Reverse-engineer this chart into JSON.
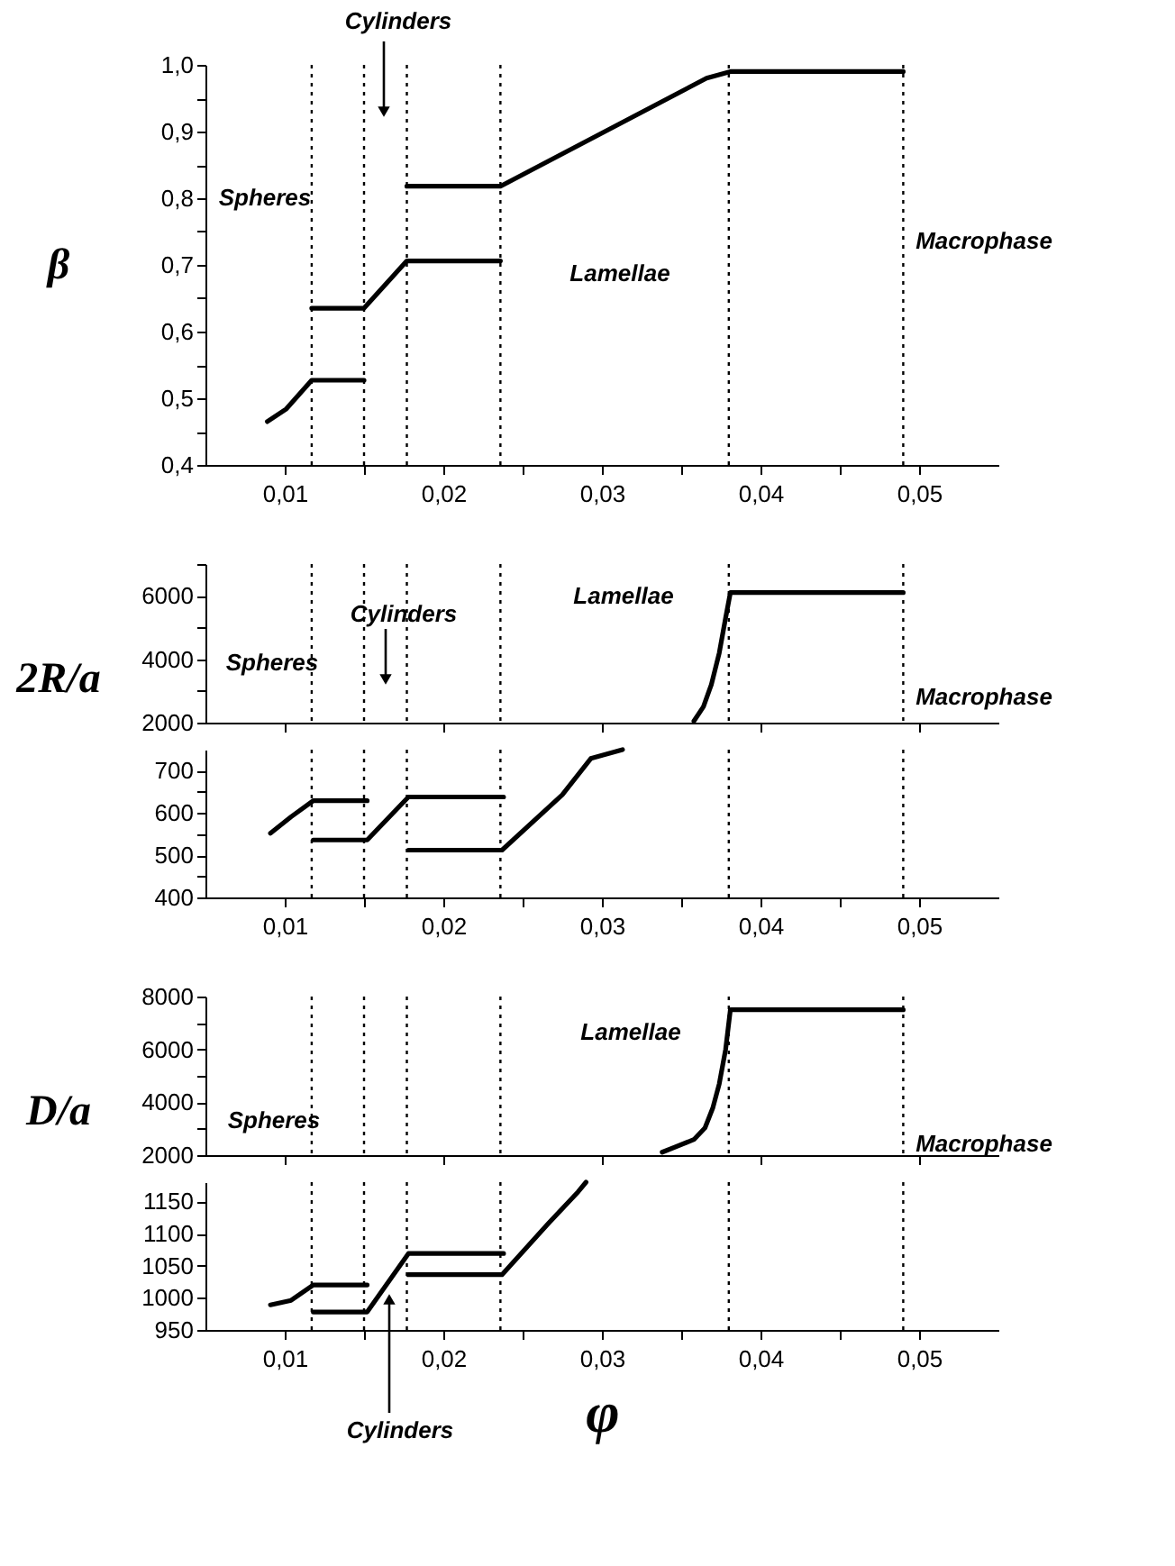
{
  "chart_data": [
    {
      "type": "line",
      "ylabel": "β",
      "xlim": [
        0.005,
        0.055
      ],
      "xticks": [
        {
          "value": 0.01,
          "label": "0,01"
        },
        {
          "value": 0.015,
          "label": null
        },
        {
          "value": 0.02,
          "label": "0,02"
        },
        {
          "value": 0.025,
          "label": null
        },
        {
          "value": 0.03,
          "label": "0,03"
        },
        {
          "value": 0.035,
          "label": null
        },
        {
          "value": 0.04,
          "label": "0,04"
        },
        {
          "value": 0.045,
          "label": null
        },
        {
          "value": 0.05,
          "label": "0,05"
        }
      ],
      "ylim": [
        0.4,
        1.0
      ],
      "yticks": [
        {
          "value": 0.4,
          "label": "0,4"
        },
        {
          "value": 0.45,
          "label": null
        },
        {
          "value": 0.5,
          "label": "0,5"
        },
        {
          "value": 0.55,
          "label": null
        },
        {
          "value": 0.6,
          "label": "0,6"
        },
        {
          "value": 0.65,
          "label": null
        },
        {
          "value": 0.7,
          "label": "0,7"
        },
        {
          "value": 0.75,
          "label": null
        },
        {
          "value": 0.8,
          "label": "0,8"
        },
        {
          "value": 0.85,
          "label": null
        },
        {
          "value": 0.9,
          "label": "0,9"
        },
        {
          "value": 0.95,
          "label": null
        },
        {
          "value": 1.0,
          "label": "1,0"
        }
      ],
      "series": [
        {
          "color": "#000000",
          "x": [
            0.0089,
            0.0101,
            0.0117,
            0.015
          ],
          "values": [
            0.465,
            0.484,
            0.527,
            0.527
          ]
        },
        {
          "color": "#000000",
          "x": [
            0.0117,
            0.015,
            0.0177,
            0.0236
          ],
          "values": [
            0.635,
            0.635,
            0.706,
            0.706
          ]
        },
        {
          "color": "#000000",
          "x": [
            0.0177,
            0.0236,
            0.0366,
            0.0381,
            0.049
          ],
          "values": [
            0.818,
            0.818,
            0.98,
            0.99,
            0.99
          ]
        }
      ],
      "ref_lines": [
        {
          "axis": "x",
          "value": 0.0117,
          "color": "#000000",
          "line_style": "dotted"
        },
        {
          "axis": "x",
          "value": 0.015,
          "color": "#000000",
          "line_style": "dotted"
        },
        {
          "axis": "x",
          "value": 0.0177,
          "color": "#000000",
          "line_style": "dotted"
        },
        {
          "axis": "x",
          "value": 0.0236,
          "color": "#000000",
          "line_style": "dotted"
        },
        {
          "axis": "x",
          "value": 0.038,
          "color": "#000000",
          "line_style": "dotted"
        },
        {
          "axis": "x",
          "value": 0.049,
          "color": "#000000",
          "line_style": "dotted"
        }
      ],
      "annotations": [
        "Cylinders",
        "Spheres",
        "Lamellae",
        "Macrophase"
      ]
    },
    {
      "type": "line",
      "ylabel": "2R/a",
      "tick_labels": "y",
      "xlim": [
        0.005,
        0.055
      ],
      "xticks": [
        0.01,
        0.02,
        0.03,
        0.04,
        0.05
      ],
      "ylim": [
        2000,
        7000
      ],
      "yticks": [
        2000,
        {
          "value": 3000,
          "label": null
        },
        4000,
        {
          "value": 5000,
          "label": null
        },
        6000,
        {
          "value": 7000,
          "label": null
        }
      ],
      "series": [
        {
          "color": "#000000",
          "x": [
            0.0358,
            0.0364,
            0.0369,
            0.0374,
            0.0378,
            0.0381,
            0.049
          ],
          "values": [
            2050,
            2500,
            3200,
            4200,
            5300,
            6100,
            6100
          ]
        }
      ],
      "ref_lines": [
        {
          "axis": "x",
          "value": 0.0117,
          "color": "#000000",
          "line_style": "dotted"
        },
        {
          "axis": "x",
          "value": 0.015,
          "color": "#000000",
          "line_style": "dotted"
        },
        {
          "axis": "x",
          "value": 0.0177,
          "color": "#000000",
          "line_style": "dotted"
        },
        {
          "axis": "x",
          "value": 0.0236,
          "color": "#000000",
          "line_style": "dotted"
        },
        {
          "axis": "x",
          "value": 0.038,
          "color": "#000000",
          "line_style": "dotted"
        },
        {
          "axis": "x",
          "value": 0.049,
          "color": "#000000",
          "line_style": "dotted"
        }
      ],
      "annotations": [
        "Cylinders",
        "Spheres",
        "Lamellae",
        "Macrophase"
      ]
    },
    {
      "type": "line",
      "xlim": [
        0.005,
        0.055
      ],
      "xticks": [
        {
          "value": 0.01,
          "label": "0,01"
        },
        {
          "value": 0.015,
          "label": null
        },
        {
          "value": 0.02,
          "label": "0,02"
        },
        {
          "value": 0.025,
          "label": null
        },
        {
          "value": 0.03,
          "label": "0,03"
        },
        {
          "value": 0.035,
          "label": null
        },
        {
          "value": 0.04,
          "label": "0,04"
        },
        {
          "value": 0.045,
          "label": null
        },
        {
          "value": 0.05,
          "label": "0,05"
        }
      ],
      "ylim": [
        400,
        750
      ],
      "yticks": [
        400,
        {
          "value": 450,
          "label": null
        },
        500,
        {
          "value": 550,
          "label": null
        },
        600,
        {
          "value": 650,
          "label": null
        },
        700
      ],
      "series": [
        {
          "color": "#000000",
          "x": [
            0.0091,
            0.0104,
            0.0118,
            0.0152
          ],
          "values": [
            552,
            591,
            629,
            629
          ]
        },
        {
          "color": "#000000",
          "x": [
            0.0118,
            0.0152,
            0.0178,
            0.0238
          ],
          "values": [
            536,
            536,
            638,
            638
          ]
        },
        {
          "color": "#000000",
          "x": [
            0.0178,
            0.0237,
            0.0275,
            0.0293,
            0.0313
          ],
          "values": [
            512,
            512,
            643,
            729,
            750
          ]
        }
      ],
      "ref_lines": [
        {
          "axis": "x",
          "value": 0.0117,
          "color": "#000000",
          "line_style": "dotted"
        },
        {
          "axis": "x",
          "value": 0.015,
          "color": "#000000",
          "line_style": "dotted"
        },
        {
          "axis": "x",
          "value": 0.0177,
          "color": "#000000",
          "line_style": "dotted"
        },
        {
          "axis": "x",
          "value": 0.0236,
          "color": "#000000",
          "line_style": "dotted"
        },
        {
          "axis": "x",
          "value": 0.038,
          "color": "#000000",
          "line_style": "dotted"
        },
        {
          "axis": "x",
          "value": 0.049,
          "color": "#000000",
          "line_style": "dotted"
        }
      ]
    },
    {
      "type": "line",
      "ylabel": "D/a",
      "tick_labels": "y",
      "xlim": [
        0.005,
        0.055
      ],
      "xticks": [
        0.01,
        0.02,
        0.03,
        0.04,
        0.05
      ],
      "ylim": [
        2000,
        8000
      ],
      "yticks": [
        2000,
        {
          "value": 3000,
          "label": null
        },
        4000,
        {
          "value": 5000,
          "label": null
        },
        6000,
        {
          "value": 7000,
          "label": null
        },
        8000
      ],
      "series": [
        {
          "color": "#000000",
          "x": [
            0.0338,
            0.0358,
            0.0365,
            0.037,
            0.0374,
            0.0378,
            0.0381,
            0.049
          ],
          "values": [
            2110,
            2590,
            3030,
            3800,
            4700,
            6000,
            7500,
            7500
          ]
        }
      ],
      "ref_lines": [
        {
          "axis": "x",
          "value": 0.0117,
          "color": "#000000",
          "line_style": "dotted"
        },
        {
          "axis": "x",
          "value": 0.015,
          "color": "#000000",
          "line_style": "dotted"
        },
        {
          "axis": "x",
          "value": 0.0177,
          "color": "#000000",
          "line_style": "dotted"
        },
        {
          "axis": "x",
          "value": 0.0236,
          "color": "#000000",
          "line_style": "dotted"
        },
        {
          "axis": "x",
          "value": 0.038,
          "color": "#000000",
          "line_style": "dotted"
        },
        {
          "axis": "x",
          "value": 0.049,
          "color": "#000000",
          "line_style": "dotted"
        }
      ],
      "annotations": [
        "Spheres",
        "Lamellae",
        "Macrophase"
      ]
    },
    {
      "type": "line",
      "xlabel": "φ",
      "xlim": [
        0.005,
        0.055
      ],
      "xticks": [
        {
          "value": 0.01,
          "label": "0,01"
        },
        {
          "value": 0.015,
          "label": null
        },
        {
          "value": 0.02,
          "label": "0,02"
        },
        {
          "value": 0.025,
          "label": null
        },
        {
          "value": 0.03,
          "label": "0,03"
        },
        {
          "value": 0.035,
          "label": null
        },
        {
          "value": 0.04,
          "label": "0,04"
        },
        {
          "value": 0.045,
          "label": null
        },
        {
          "value": 0.05,
          "label": "0,05"
        }
      ],
      "ylim": [
        950,
        1180
      ],
      "yticks": [
        950,
        1000,
        1050,
        1100,
        1150
      ],
      "series": [
        {
          "color": "#000000",
          "x": [
            0.0091,
            0.0104,
            0.0118,
            0.0152
          ],
          "values": [
            989,
            996,
            1020,
            1020
          ]
        },
        {
          "color": "#000000",
          "x": [
            0.0118,
            0.0152,
            0.0178,
            0.0238
          ],
          "values": [
            978,
            978,
            1069,
            1069
          ]
        },
        {
          "color": "#000000",
          "x": [
            0.0178,
            0.0237,
            0.0266,
            0.0285,
            0.029
          ],
          "values": [
            1036,
            1036,
            1115,
            1165,
            1180
          ]
        }
      ],
      "ref_lines": [
        {
          "axis": "x",
          "value": 0.0117,
          "color": "#000000",
          "line_style": "dotted"
        },
        {
          "axis": "x",
          "value": 0.015,
          "color": "#000000",
          "line_style": "dotted"
        },
        {
          "axis": "x",
          "value": 0.0177,
          "color": "#000000",
          "line_style": "dotted"
        },
        {
          "axis": "x",
          "value": 0.0236,
          "color": "#000000",
          "line_style": "dotted"
        },
        {
          "axis": "x",
          "value": 0.038,
          "color": "#000000",
          "line_style": "dotted"
        },
        {
          "axis": "x",
          "value": 0.049,
          "color": "#000000",
          "line_style": "dotted"
        }
      ],
      "annotations": [
        "Cylinders"
      ]
    }
  ]
}
